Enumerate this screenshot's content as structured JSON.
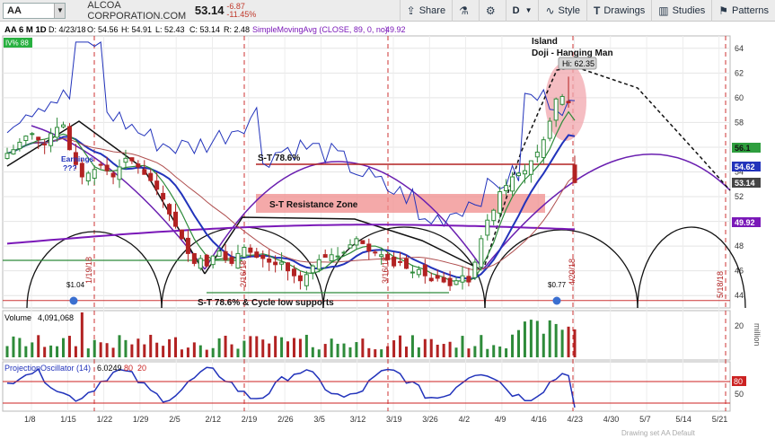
{
  "toolbar": {
    "symbol": "AA",
    "company": "ALCOA CORPORATION.COM",
    "last": "53.14",
    "change": "-6.87",
    "change_pct": "-11.45%",
    "buttons": [
      "Share",
      "Style",
      "Drawings",
      "Studies",
      "Patterns"
    ],
    "period": "D"
  },
  "header": {
    "title": "AA 6 M 1D",
    "date": "D: 4/23/18",
    "o": "O: 54.56",
    "h": "H: 54.91",
    "l": "L: 52.43",
    "c": "C: 53.14",
    "r": "R: 2.48",
    "study": "SimpleMovingAvg (CLOSE, 89, 0, no)",
    "study_value": "49.92",
    "iv_badge": "IV% 88"
  },
  "annotations": {
    "island": "Island",
    "doji": "Doji - Hanging Man",
    "hi": "Hi: 62.35",
    "st786": "S-T 78.6%",
    "resistance": "S-T Resistance Zone",
    "support": "S-T 78.6% & Cycle low supports",
    "earnings": "Earnings",
    "earnings2": "???",
    "div1": "$1.04",
    "div2": "$0.77",
    "cycle_dates": [
      "1/19/18",
      "2/16/18",
      "3/16/18",
      "4/20/18",
      "5/18/18"
    ]
  },
  "price_labels": {
    "l56": "56.1",
    "l5462": "54.62",
    "l5314": "53.14",
    "l4992": "49.92"
  },
  "volume": {
    "title": "Volume",
    "value": "4,091,068",
    "axis_top": "20",
    "axis_unit": "million"
  },
  "oscillator": {
    "title": "ProjectionOscillator (14)",
    "value": "6.0249",
    "p1": "80",
    "p2": "20"
  },
  "watermark": "Drawing set AA Default",
  "colors": {
    "up": "#2e8b3a",
    "down": "#b22222",
    "blue": "#2233bb",
    "purple": "#7a18b8",
    "green": "#2e8b3a"
  },
  "chart_data": {
    "type": "candlestick",
    "x_tick_labels": [
      "1/8",
      "1/15",
      "1/22",
      "1/29",
      "2/5",
      "2/12",
      "2/19",
      "2/26",
      "3/5",
      "3/12",
      "3/19",
      "3/26",
      "4/2",
      "4/9",
      "4/16",
      "4/23",
      "4/30",
      "5/7",
      "5/14",
      "5/21"
    ],
    "y_ticks": [
      44,
      46,
      48,
      50,
      52,
      54,
      56,
      58,
      60,
      62,
      64
    ],
    "ylim": [
      43,
      65
    ],
    "closes": [
      55.5,
      55.8,
      56.4,
      56.9,
      57.1,
      56.6,
      56.2,
      57.1,
      57.6,
      57.8,
      55.8,
      54.6,
      53.6,
      53.9,
      54.2,
      54.6,
      54.1,
      53.6,
      54.4,
      55.1,
      54.9,
      54.4,
      53.8,
      53.3,
      52.6,
      51.8,
      50.6,
      49.6,
      48.6,
      47.4,
      46.6,
      47.0,
      46.4,
      47.2,
      47.6,
      46.9,
      46.6,
      47.4,
      47.9,
      47.5,
      47.1,
      47.0,
      46.7,
      46.5,
      46.7,
      46.0,
      45.6,
      45.2,
      45.7,
      46.4,
      46.9,
      47.1,
      47.3,
      47.2,
      47.5,
      48.1,
      48.6,
      48.2,
      47.6,
      47.5,
      47.3,
      46.9,
      46.4,
      46.7,
      46.2,
      45.9,
      46.1,
      45.6,
      45.2,
      45.4,
      45.1,
      44.8,
      45.2,
      45.6,
      45.1,
      46.7,
      48.6,
      50.1,
      50.9,
      52.4,
      52.9,
      53.6,
      53.9,
      54.1,
      54.9,
      55.6,
      56.6,
      58.1,
      59.9,
      60.1,
      59.6,
      53.14
    ]
  }
}
